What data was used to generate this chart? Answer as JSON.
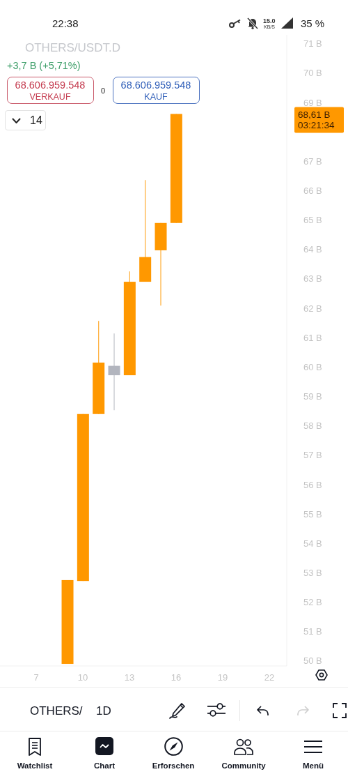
{
  "chart_data": {
    "type": "candlestick",
    "title": "OTHERS/USDT.D",
    "subtitle": "+3,7 B (+5,71%)",
    "x": [
      9,
      10,
      11,
      12,
      13,
      14,
      15,
      16
    ],
    "ohlc": [
      [
        49.9,
        52.75,
        49.9,
        52.75
      ],
      [
        52.72,
        58.4,
        52.72,
        58.4
      ],
      [
        58.4,
        61.57,
        58.4,
        60.15
      ],
      [
        60.04,
        61.14,
        58.53,
        59.72
      ],
      [
        59.72,
        63.25,
        59.72,
        62.9
      ],
      [
        62.9,
        66.36,
        62.9,
        63.74
      ],
      [
        63.97,
        64.9,
        62.09,
        64.9
      ],
      [
        64.9,
        68.61,
        64.9,
        68.61
      ]
    ],
    "colors": [
      "#ff9800",
      "#ff9800",
      "#ff9800",
      "#b2b5be",
      "#ff9800",
      "#ff9800",
      "#ff9800",
      "#ff9800"
    ],
    "xlim": [
      4.67,
      23.12
    ],
    "xticks": [
      7,
      10,
      13,
      16,
      19,
      22
    ],
    "ylim": [
      49.83,
      71.3
    ],
    "yticks": [
      {
        "value": 50,
        "label": "50 B"
      },
      {
        "value": 51,
        "label": "51 B"
      },
      {
        "value": 52,
        "label": "52 B"
      },
      {
        "value": 53,
        "label": "53 B"
      },
      {
        "value": 54,
        "label": "54 B"
      },
      {
        "value": 55,
        "label": "55 B"
      },
      {
        "value": 56,
        "label": "56 B"
      },
      {
        "value": 57,
        "label": "57 B"
      },
      {
        "value": 58,
        "label": "58 B"
      },
      {
        "value": 59,
        "label": "59 B"
      },
      {
        "value": 60,
        "label": "60 B"
      },
      {
        "value": 61,
        "label": "61 B"
      },
      {
        "value": 62,
        "label": "62 B"
      },
      {
        "value": 63,
        "label": "63 B"
      },
      {
        "value": 64,
        "label": "64 B"
      },
      {
        "value": 65,
        "label": "65 B"
      },
      {
        "value": 66,
        "label": "66 B"
      },
      {
        "value": 67,
        "label": "67 B"
      },
      {
        "value": 69,
        "label": "69 B"
      },
      {
        "value": 70,
        "label": "70 B"
      },
      {
        "value": 71,
        "label": "71 B"
      }
    ],
    "annotations": [
      "22:38",
      "15.0",
      "KB/S",
      "35 %",
      "68.606.959.548",
      "VERKAUF",
      "0",
      "68.606.959.548",
      "KAUF",
      "14",
      "OTHERS/",
      "1D",
      "Watchlist",
      "Chart",
      "Erforschen",
      "Community",
      "Menü",
      "68,61 B",
      "03:21:34"
    ]
  }
}
